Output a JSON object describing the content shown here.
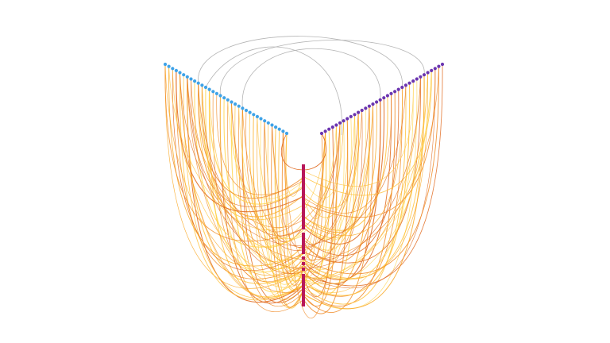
{
  "diagram": {
    "type": "hive-plot",
    "background": "#ffffff",
    "axes": [
      {
        "id": "left",
        "color": "#3fa3e8",
        "node_count": 34
      },
      {
        "id": "right",
        "color": "#6b35b0",
        "node_count": 34
      },
      {
        "id": "bottom",
        "color": "#b8185a",
        "style": "segmented-bar"
      }
    ],
    "edge_colors": [
      "#ffd54f",
      "#ffc23d",
      "#f9a825",
      "#f08a24",
      "#e06a1f"
    ],
    "intra_edge_color": "#b5b5b5",
    "intra_edge_count": 3
  }
}
